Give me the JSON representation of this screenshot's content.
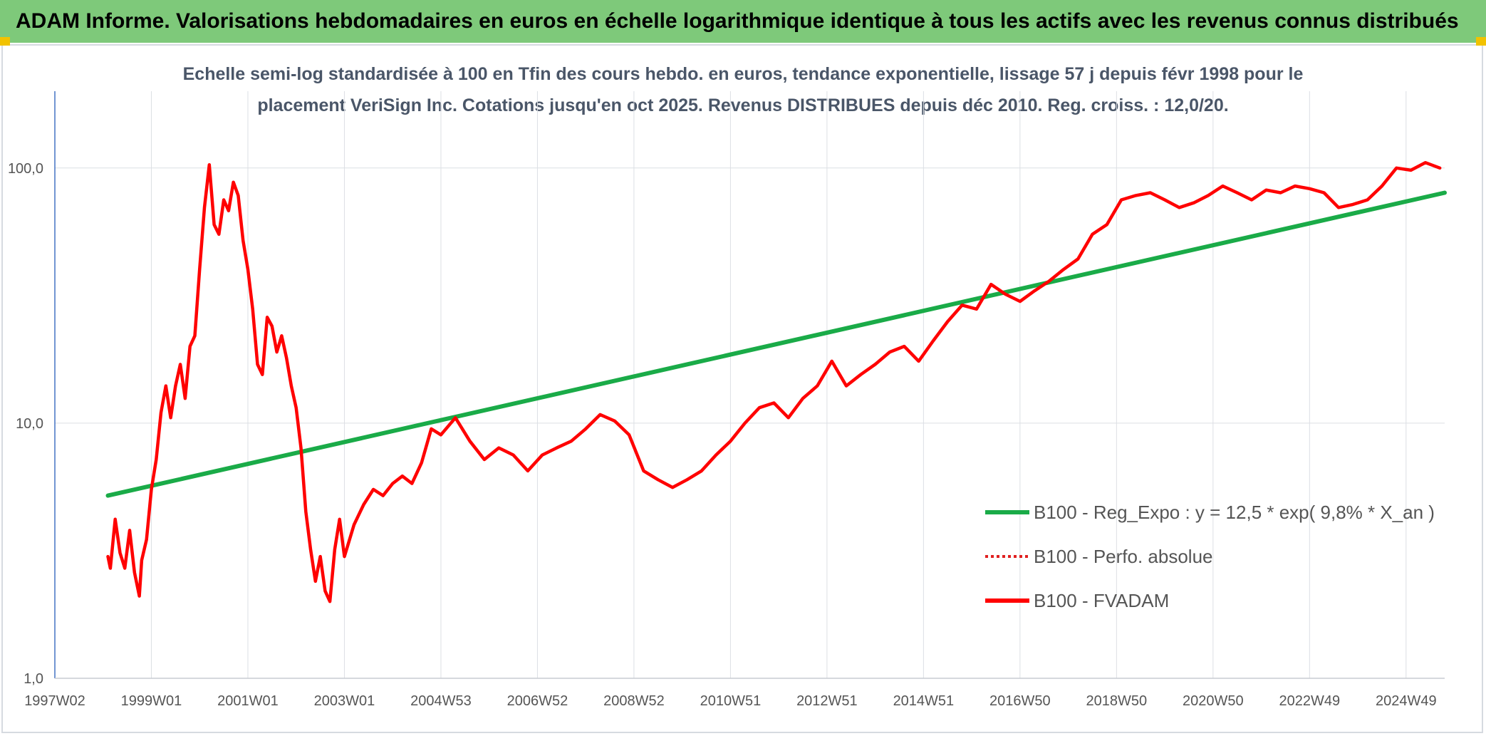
{
  "header": {
    "title": "ADAM Informe. Valorisations hebdomadaires en euros en échelle logarithmique identique à tous les actifs avec les revenus connus distribués"
  },
  "colors": {
    "header_bg": "#7ec97a",
    "fvadam": "#ff0000",
    "regression": "#1aab48",
    "perfo_absolue": "#e02020",
    "axis": "#4472c4",
    "grid": "#dcdfe4"
  },
  "chart_data": {
    "type": "line",
    "title_lines": [
      "Echelle semi-log standardisée à 100 en Tfin des cours hebdo. en euros, tendance exponentielle, lissage 57 j depuis févr 1998 pour le",
      "placement VeriSign Inc. Cotations jusqu'en oct 2025. Revenus DISTRIBUES depuis déc 2010. Reg. croiss. : 12,0/20."
    ],
    "y_scale": "log",
    "ylim": [
      1,
      200
    ],
    "y_ticks": [
      {
        "value": 1,
        "label": "1,0"
      },
      {
        "value": 10,
        "label": "10,0"
      },
      {
        "value": 100,
        "label": "100,0"
      }
    ],
    "xlim": [
      1997.0,
      2025.8
    ],
    "x_ticks": [
      {
        "value": 1997.0,
        "label": "1997W02"
      },
      {
        "value": 1999.0,
        "label": "1999W01"
      },
      {
        "value": 2001.0,
        "label": "2001W01"
      },
      {
        "value": 2003.0,
        "label": "2003W01"
      },
      {
        "value": 2005.0,
        "label": "2004W53"
      },
      {
        "value": 2007.0,
        "label": "2006W52"
      },
      {
        "value": 2009.0,
        "label": "2008W52"
      },
      {
        "value": 2011.0,
        "label": "2010W51"
      },
      {
        "value": 2013.0,
        "label": "2012W51"
      },
      {
        "value": 2015.0,
        "label": "2014W51"
      },
      {
        "value": 2017.0,
        "label": "2016W50"
      },
      {
        "value": 2019.0,
        "label": "2018W50"
      },
      {
        "value": 2021.0,
        "label": "2020W50"
      },
      {
        "value": 2023.0,
        "label": "2022W49"
      },
      {
        "value": 2025.0,
        "label": "2024W49"
      }
    ],
    "legend_position": "right",
    "series": [
      {
        "name": "B100 - Reg_Expo : y = 12,5 * exp( 9,8% *  X_an )",
        "style": "solid-thick",
        "color": "#1aab48",
        "x": [
          1998.1,
          2025.8
        ],
        "y": [
          5.2,
          80.0
        ]
      },
      {
        "name": "B100 - Perfo. absolue",
        "style": "dotted",
        "color": "#e02020",
        "x": [],
        "y": []
      },
      {
        "name": "B100 - FVADAM",
        "style": "solid",
        "color": "#ff0000",
        "x": [
          1998.1,
          1998.15,
          1998.25,
          1998.35,
          1998.45,
          1998.55,
          1998.65,
          1998.75,
          1998.8,
          1998.9,
          1999.0,
          1999.1,
          1999.2,
          1999.3,
          1999.4,
          1999.5,
          1999.6,
          1999.7,
          1999.8,
          1999.9,
          2000.0,
          2000.1,
          2000.2,
          2000.3,
          2000.4,
          2000.5,
          2000.6,
          2000.7,
          2000.8,
          2000.9,
          2001.0,
          2001.1,
          2001.2,
          2001.3,
          2001.4,
          2001.5,
          2001.6,
          2001.7,
          2001.8,
          2001.9,
          2002.0,
          2002.1,
          2002.2,
          2002.3,
          2002.4,
          2002.5,
          2002.6,
          2002.7,
          2002.8,
          2002.9,
          2003.0,
          2003.2,
          2003.4,
          2003.6,
          2003.8,
          2004.0,
          2004.2,
          2004.4,
          2004.6,
          2004.8,
          2005.0,
          2005.3,
          2005.6,
          2005.9,
          2006.2,
          2006.5,
          2006.8,
          2007.1,
          2007.4,
          2007.7,
          2008.0,
          2008.3,
          2008.6,
          2008.9,
          2009.2,
          2009.5,
          2009.8,
          2010.1,
          2010.4,
          2010.7,
          2011.0,
          2011.3,
          2011.6,
          2011.9,
          2012.2,
          2012.5,
          2012.8,
          2013.1,
          2013.4,
          2013.7,
          2014.0,
          2014.3,
          2014.6,
          2014.9,
          2015.2,
          2015.5,
          2015.8,
          2016.1,
          2016.4,
          2016.7,
          2017.0,
          2017.3,
          2017.6,
          2017.9,
          2018.2,
          2018.5,
          2018.8,
          2019.1,
          2019.4,
          2019.7,
          2020.0,
          2020.3,
          2020.6,
          2020.9,
          2021.2,
          2021.5,
          2021.8,
          2022.1,
          2022.4,
          2022.7,
          2023.0,
          2023.3,
          2023.6,
          2023.9,
          2024.2,
          2024.5,
          2024.8,
          2025.1,
          2025.4,
          2025.7
        ],
        "y": [
          3.0,
          2.7,
          4.2,
          3.1,
          2.7,
          3.8,
          2.6,
          2.1,
          2.9,
          3.5,
          5.5,
          7.2,
          11.0,
          14.0,
          10.5,
          14.0,
          17.0,
          12.5,
          20.0,
          22.0,
          40.0,
          70.0,
          103.0,
          60.0,
          55.0,
          75.0,
          68.0,
          88.0,
          78.0,
          52.0,
          40.0,
          28.0,
          17.0,
          15.5,
          26.0,
          24.0,
          19.0,
          22.0,
          18.0,
          14.0,
          11.5,
          8.0,
          4.5,
          3.2,
          2.4,
          3.0,
          2.2,
          2.0,
          3.2,
          4.2,
          3.0,
          4.0,
          4.8,
          5.5,
          5.2,
          5.8,
          6.2,
          5.8,
          7.0,
          9.5,
          9.0,
          10.5,
          8.5,
          7.2,
          8.0,
          7.5,
          6.5,
          7.5,
          8.0,
          8.5,
          9.5,
          10.8,
          10.2,
          9.0,
          6.5,
          6.0,
          5.6,
          6.0,
          6.5,
          7.5,
          8.5,
          10.0,
          11.5,
          12.0,
          10.5,
          12.5,
          14.0,
          17.5,
          14.0,
          15.5,
          17.0,
          19.0,
          20.0,
          17.5,
          21.0,
          25.0,
          29.0,
          28.0,
          35.0,
          32.0,
          30.0,
          33.0,
          36.0,
          40.0,
          44.0,
          55.0,
          60.0,
          75.0,
          78.0,
          80.0,
          75.0,
          70.0,
          73.0,
          78.0,
          85.0,
          80.0,
          75.0,
          82.0,
          80.0,
          85.0,
          83.0,
          80.0,
          70.0,
          72.0,
          75.0,
          85.0,
          100.0,
          98.0,
          105.0,
          100.0
        ]
      }
    ]
  }
}
